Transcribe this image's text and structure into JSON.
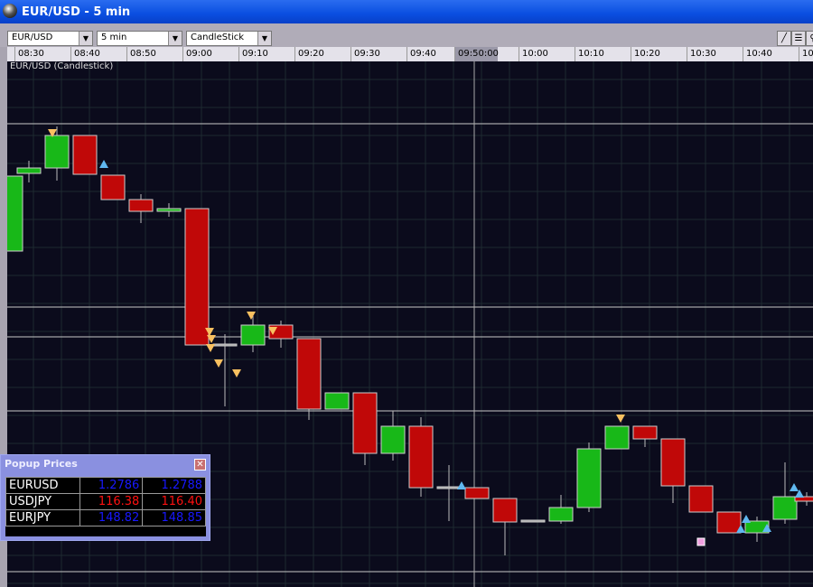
{
  "window": {
    "title": "EUR/USD - 5 min"
  },
  "toolbar": {
    "symbol": "EUR/USD",
    "interval": "5 min",
    "chart_type": "CandleStick",
    "tools": [
      "draw-line-icon",
      "horizontal-lines-icon",
      "zoom-icon"
    ]
  },
  "time_axis": {
    "ticks": [
      "08:30",
      "08:40",
      "08:50",
      "09:00",
      "09:10",
      "09:20",
      "09:30",
      "09:40",
      "09:50:00",
      "10:00",
      "10:10",
      "10:20",
      "10:30",
      "10:40",
      "10:"
    ],
    "highlighted": "09:50:00"
  },
  "chart_data": {
    "type": "candlestick",
    "title": "EUR/USD (Candlestick)",
    "x_ticks": [
      "08:30",
      "08:40",
      "08:50",
      "09:00",
      "09:10",
      "09:20",
      "09:30",
      "09:40",
      "09:50:00",
      "10:00",
      "10:10",
      "10:20",
      "10:30",
      "10:40"
    ],
    "up_color": "#18b818",
    "down_color": "#c00808",
    "grid": true
  },
  "popup": {
    "title": "Popup Prices",
    "rows": [
      {
        "symbol": "EURUSD",
        "bid": "1.2786",
        "ask": "1.2788",
        "color": "#1818ff"
      },
      {
        "symbol": "USDJPY",
        "bid": "116.38",
        "ask": "116.40",
        "color": "#ff1010"
      },
      {
        "symbol": "EURJPY",
        "bid": "148.82",
        "ask": "148.85",
        "color": "#1818ff"
      }
    ]
  }
}
